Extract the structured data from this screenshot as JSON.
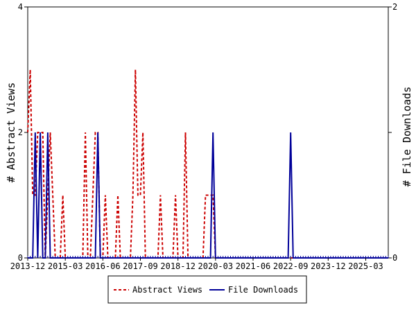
{
  "chart_data": {
    "type": "line",
    "title": "",
    "xlabel": "",
    "ylabel": "# Abstract Views",
    "y2label": "# File Downloads",
    "xlim": [
      "2013-12",
      "2025-12"
    ],
    "ylim": [
      0,
      4
    ],
    "y2lim": [
      0,
      2
    ],
    "y_ticks": [
      "0",
      "2",
      "4"
    ],
    "y2_ticks": [
      "0",
      "1",
      "2"
    ],
    "x_ticks": [
      "2013-12",
      "2015-03",
      "2016-06",
      "2017-09",
      "2018-12",
      "2020-03",
      "2021-06",
      "2022-09",
      "2023-12",
      "2025-03"
    ],
    "grid": false,
    "legend_position": "bottom",
    "series": [
      {
        "name": "Abstract Views",
        "axis": "left",
        "color": "#cc0000",
        "dash": "dashed",
        "points": [
          [
            "2013-12",
            2
          ],
          [
            "2014-01",
            3
          ],
          [
            "2014-02",
            1
          ],
          [
            "2014-03",
            1
          ],
          [
            "2014-04",
            2
          ],
          [
            "2014-05",
            2
          ],
          [
            "2014-06",
            2
          ],
          [
            "2014-07",
            0
          ],
          [
            "2014-08",
            1
          ],
          [
            "2014-09",
            2
          ],
          [
            "2014-10",
            1
          ],
          [
            "2014-11",
            0
          ],
          [
            "2014-12",
            0
          ],
          [
            "2015-01",
            0
          ],
          [
            "2015-02",
            1
          ],
          [
            "2015-03",
            0
          ],
          [
            "2015-04",
            0
          ],
          [
            "2015-05",
            0
          ],
          [
            "2015-06",
            0
          ],
          [
            "2015-07",
            0
          ],
          [
            "2015-08",
            0
          ],
          [
            "2015-09",
            0
          ],
          [
            "2015-10",
            0
          ],
          [
            "2015-11",
            2
          ],
          [
            "2015-12",
            0
          ],
          [
            "2016-01",
            0
          ],
          [
            "2016-02",
            1
          ],
          [
            "2016-03",
            2
          ],
          [
            "2016-04",
            2
          ],
          [
            "2016-05",
            0
          ],
          [
            "2016-06",
            0
          ],
          [
            "2016-07",
            1
          ],
          [
            "2016-08",
            0
          ],
          [
            "2016-09",
            0
          ],
          [
            "2016-10",
            0
          ],
          [
            "2016-11",
            0
          ],
          [
            "2016-12",
            1
          ],
          [
            "2017-01",
            0
          ],
          [
            "2017-02",
            0
          ],
          [
            "2017-03",
            0
          ],
          [
            "2017-04",
            0
          ],
          [
            "2017-05",
            0
          ],
          [
            "2017-06",
            1
          ],
          [
            "2017-07",
            3
          ],
          [
            "2017-08",
            1
          ],
          [
            "2017-09",
            1
          ],
          [
            "2017-10",
            2
          ],
          [
            "2017-11",
            0
          ],
          [
            "2017-12",
            0
          ],
          [
            "2018-01",
            0
          ],
          [
            "2018-02",
            0
          ],
          [
            "2018-03",
            0
          ],
          [
            "2018-04",
            0
          ],
          [
            "2018-05",
            1
          ],
          [
            "2018-06",
            0
          ],
          [
            "2018-07",
            0
          ],
          [
            "2018-08",
            0
          ],
          [
            "2018-09",
            0
          ],
          [
            "2018-10",
            0
          ],
          [
            "2018-11",
            1
          ],
          [
            "2018-12",
            0
          ],
          [
            "2019-01",
            0
          ],
          [
            "2019-02",
            0
          ],
          [
            "2019-03",
            2
          ],
          [
            "2019-04",
            0
          ],
          [
            "2019-05",
            0
          ],
          [
            "2019-06",
            0
          ],
          [
            "2019-07",
            0
          ],
          [
            "2019-08",
            0
          ],
          [
            "2019-09",
            0
          ],
          [
            "2019-10",
            0
          ],
          [
            "2019-11",
            1
          ],
          [
            "2019-12",
            1
          ],
          [
            "2020-01",
            1
          ],
          [
            "2020-02",
            1
          ],
          [
            "2020-03",
            0
          ],
          [
            "2020-04",
            0
          ],
          [
            "2020-05",
            0
          ],
          [
            "2020-06",
            0
          ],
          [
            "2020-07",
            0
          ],
          [
            "2020-08",
            0
          ],
          [
            "2020-09",
            0
          ],
          [
            "2020-10",
            0
          ],
          [
            "2020-11",
            0
          ],
          [
            "2020-12",
            0
          ],
          [
            "2021-01",
            0
          ],
          [
            "2021-02",
            0
          ],
          [
            "2021-03",
            0
          ],
          [
            "2021-04",
            0
          ],
          [
            "2021-05",
            0
          ],
          [
            "2021-06",
            0
          ],
          [
            "2021-07",
            0
          ],
          [
            "2021-08",
            0
          ],
          [
            "2021-09",
            0
          ],
          [
            "2021-10",
            0
          ],
          [
            "2021-11",
            0
          ],
          [
            "2021-12",
            0
          ],
          [
            "2022-01",
            0
          ],
          [
            "2022-02",
            0
          ],
          [
            "2022-03",
            0
          ],
          [
            "2022-04",
            0
          ],
          [
            "2022-05",
            0
          ],
          [
            "2022-06",
            0
          ],
          [
            "2022-07",
            0
          ],
          [
            "2022-08",
            0
          ],
          [
            "2022-09",
            0
          ],
          [
            "2022-10",
            0
          ],
          [
            "2022-11",
            0
          ],
          [
            "2022-12",
            0
          ],
          [
            "2023-01",
            0
          ],
          [
            "2023-02",
            0
          ],
          [
            "2023-03",
            0
          ],
          [
            "2023-04",
            0
          ],
          [
            "2023-05",
            0
          ],
          [
            "2023-06",
            0
          ],
          [
            "2023-07",
            0
          ],
          [
            "2023-08",
            0
          ],
          [
            "2023-09",
            0
          ],
          [
            "2023-10",
            0
          ],
          [
            "2023-11",
            0
          ],
          [
            "2023-12",
            0
          ],
          [
            "2024-01",
            0
          ],
          [
            "2024-02",
            0
          ],
          [
            "2024-03",
            0
          ],
          [
            "2024-04",
            0
          ],
          [
            "2024-05",
            0
          ],
          [
            "2024-06",
            0
          ],
          [
            "2024-07",
            0
          ],
          [
            "2024-08",
            0
          ],
          [
            "2024-09",
            0
          ],
          [
            "2024-10",
            0
          ],
          [
            "2024-11",
            0
          ],
          [
            "2024-12",
            0
          ],
          [
            "2025-01",
            0
          ],
          [
            "2025-02",
            0
          ],
          [
            "2025-03",
            0
          ],
          [
            "2025-04",
            0
          ],
          [
            "2025-05",
            0
          ],
          [
            "2025-06",
            0
          ],
          [
            "2025-07",
            0
          ],
          [
            "2025-08",
            0
          ],
          [
            "2025-09",
            0
          ],
          [
            "2025-10",
            0
          ],
          [
            "2025-11",
            0
          ],
          [
            "2025-12",
            0
          ]
        ]
      },
      {
        "name": "File Downloads",
        "axis": "right",
        "color": "#000099",
        "dash": "solid",
        "points": [
          [
            "2013-12",
            0
          ],
          [
            "2014-01",
            0
          ],
          [
            "2014-02",
            0
          ],
          [
            "2014-03",
            1
          ],
          [
            "2014-04",
            0
          ],
          [
            "2014-05",
            1
          ],
          [
            "2014-06",
            0
          ],
          [
            "2014-07",
            0
          ],
          [
            "2014-08",
            1
          ],
          [
            "2014-09",
            0
          ],
          [
            "2014-10",
            0
          ],
          [
            "2014-11",
            0
          ],
          [
            "2014-12",
            0
          ],
          [
            "2015-01",
            0
          ],
          [
            "2015-02",
            0
          ],
          [
            "2015-03",
            0
          ],
          [
            "2015-04",
            0
          ],
          [
            "2015-05",
            0
          ],
          [
            "2015-06",
            0
          ],
          [
            "2015-07",
            0
          ],
          [
            "2015-08",
            0
          ],
          [
            "2015-09",
            0
          ],
          [
            "2015-10",
            0
          ],
          [
            "2015-11",
            0
          ],
          [
            "2015-12",
            0
          ],
          [
            "2016-01",
            0
          ],
          [
            "2016-02",
            0
          ],
          [
            "2016-03",
            0
          ],
          [
            "2016-04",
            1
          ],
          [
            "2016-05",
            0
          ],
          [
            "2016-06",
            0
          ],
          [
            "2016-07",
            0
          ],
          [
            "2016-08",
            0
          ],
          [
            "2016-09",
            0
          ],
          [
            "2016-10",
            0
          ],
          [
            "2016-11",
            0
          ],
          [
            "2016-12",
            0
          ],
          [
            "2017-01",
            0
          ],
          [
            "2017-02",
            0
          ],
          [
            "2017-03",
            0
          ],
          [
            "2017-04",
            0
          ],
          [
            "2017-05",
            0
          ],
          [
            "2017-06",
            0
          ],
          [
            "2017-07",
            0
          ],
          [
            "2017-08",
            0
          ],
          [
            "2017-09",
            0
          ],
          [
            "2017-10",
            0
          ],
          [
            "2017-11",
            0
          ],
          [
            "2017-12",
            0
          ],
          [
            "2018-01",
            0
          ],
          [
            "2018-02",
            0
          ],
          [
            "2018-03",
            0
          ],
          [
            "2018-04",
            0
          ],
          [
            "2018-05",
            0
          ],
          [
            "2018-06",
            0
          ],
          [
            "2018-07",
            0
          ],
          [
            "2018-08",
            0
          ],
          [
            "2018-09",
            0
          ],
          [
            "2018-10",
            0
          ],
          [
            "2018-11",
            0
          ],
          [
            "2018-12",
            0
          ],
          [
            "2019-01",
            0
          ],
          [
            "2019-02",
            0
          ],
          [
            "2019-03",
            0
          ],
          [
            "2019-04",
            0
          ],
          [
            "2019-05",
            0
          ],
          [
            "2019-06",
            0
          ],
          [
            "2019-07",
            0
          ],
          [
            "2019-08",
            0
          ],
          [
            "2019-09",
            0
          ],
          [
            "2019-10",
            0
          ],
          [
            "2019-11",
            0
          ],
          [
            "2019-12",
            0
          ],
          [
            "2020-01",
            0
          ],
          [
            "2020-02",
            1
          ],
          [
            "2020-03",
            0
          ],
          [
            "2020-04",
            0
          ],
          [
            "2020-05",
            0
          ],
          [
            "2020-06",
            0
          ],
          [
            "2020-07",
            0
          ],
          [
            "2020-08",
            0
          ],
          [
            "2020-09",
            0
          ],
          [
            "2020-10",
            0
          ],
          [
            "2020-11",
            0
          ],
          [
            "2020-12",
            0
          ],
          [
            "2021-01",
            0
          ],
          [
            "2021-02",
            0
          ],
          [
            "2021-03",
            0
          ],
          [
            "2021-04",
            0
          ],
          [
            "2021-05",
            0
          ],
          [
            "2021-06",
            0
          ],
          [
            "2021-07",
            0
          ],
          [
            "2021-08",
            0
          ],
          [
            "2021-09",
            0
          ],
          [
            "2021-10",
            0
          ],
          [
            "2021-11",
            0
          ],
          [
            "2021-12",
            0
          ],
          [
            "2022-01",
            0
          ],
          [
            "2022-02",
            0
          ],
          [
            "2022-03",
            0
          ],
          [
            "2022-04",
            0
          ],
          [
            "2022-05",
            0
          ],
          [
            "2022-06",
            0
          ],
          [
            "2022-07",
            0
          ],
          [
            "2022-08",
            0
          ],
          [
            "2022-09",
            1
          ],
          [
            "2022-10",
            0
          ],
          [
            "2022-11",
            0
          ],
          [
            "2022-12",
            0
          ],
          [
            "2023-01",
            0
          ],
          [
            "2023-02",
            0
          ],
          [
            "2023-03",
            0
          ],
          [
            "2023-04",
            0
          ],
          [
            "2023-05",
            0
          ],
          [
            "2023-06",
            0
          ],
          [
            "2023-07",
            0
          ],
          [
            "2023-08",
            0
          ],
          [
            "2023-09",
            0
          ],
          [
            "2023-10",
            0
          ],
          [
            "2023-11",
            0
          ],
          [
            "2023-12",
            0
          ],
          [
            "2024-01",
            0
          ],
          [
            "2024-02",
            0
          ],
          [
            "2024-03",
            0
          ],
          [
            "2024-04",
            0
          ],
          [
            "2024-05",
            0
          ],
          [
            "2024-06",
            0
          ],
          [
            "2024-07",
            0
          ],
          [
            "2024-08",
            0
          ],
          [
            "2024-09",
            0
          ],
          [
            "2024-10",
            0
          ],
          [
            "2024-11",
            0
          ],
          [
            "2024-12",
            0
          ],
          [
            "2025-01",
            0
          ],
          [
            "2025-02",
            0
          ],
          [
            "2025-03",
            0
          ],
          [
            "2025-04",
            0
          ],
          [
            "2025-05",
            0
          ],
          [
            "2025-06",
            0
          ],
          [
            "2025-07",
            0
          ],
          [
            "2025-08",
            0
          ],
          [
            "2025-09",
            0
          ],
          [
            "2025-10",
            0
          ],
          [
            "2025-11",
            0
          ],
          [
            "2025-12",
            0
          ]
        ]
      }
    ]
  }
}
